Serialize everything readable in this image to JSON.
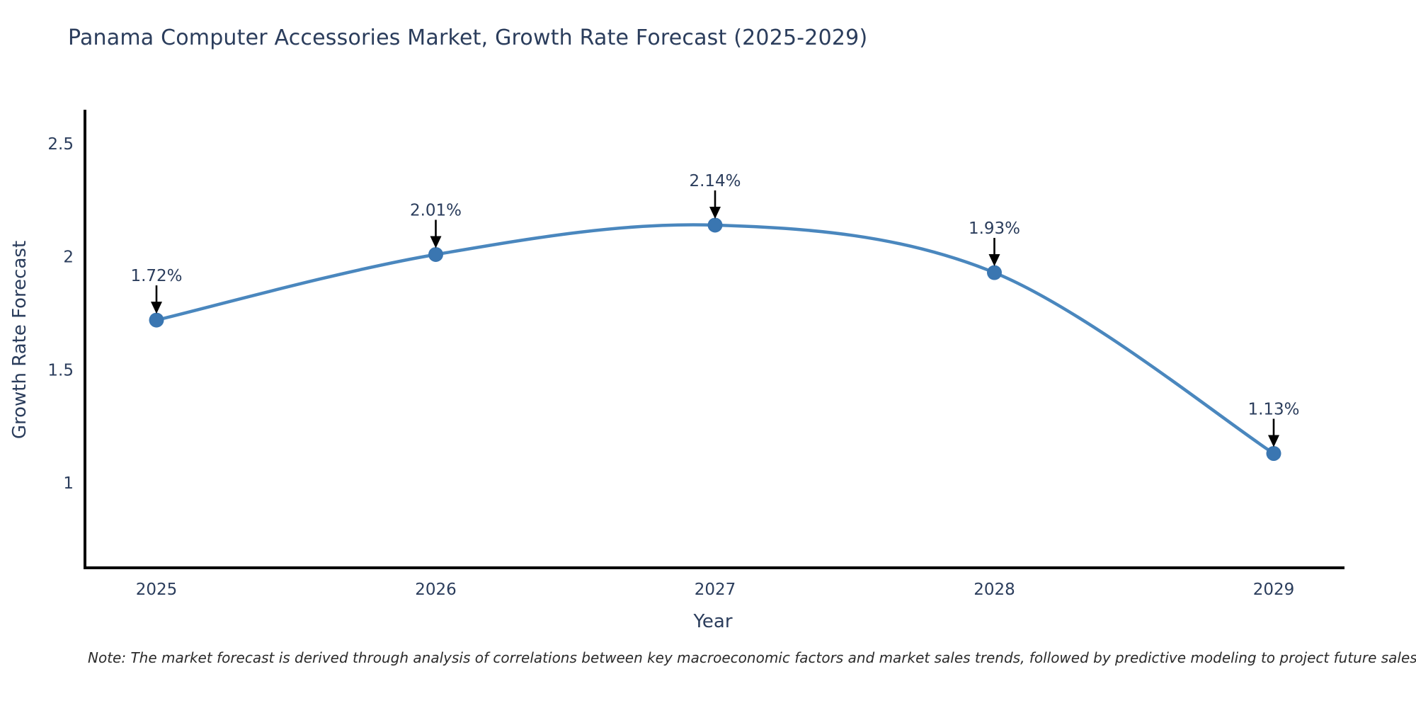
{
  "page": {
    "background": "#ffffff"
  },
  "header": {
    "title": "Panama Computer Accessories Market, Growth Rate Forecast (2025-2029)"
  },
  "footer": {
    "note": "Note: The market forecast is derived through analysis of correlations between key macroeconomic factors and market sales trends, followed by predictive modeling to project future sales"
  },
  "colors": {
    "line": "#4a87be",
    "marker": "#3a76b1",
    "axis": "#000000",
    "text": "#2b3d5c",
    "arrow": "#000000",
    "note_text": "#2b2b2b"
  },
  "chart_data": {
    "type": "line",
    "title": "Panama Computer Accessories Market, Growth Rate Forecast (2025-2029)",
    "xlabel": "Year",
    "ylabel": "Growth Rate Forecast",
    "x": [
      "2025",
      "2026",
      "2027",
      "2028",
      "2029"
    ],
    "series": [
      {
        "name": "Growth Rate Forecast",
        "values": [
          1.72,
          2.01,
          2.14,
          1.93,
          1.13
        ],
        "point_labels": [
          "1.72%",
          "2.01%",
          "2.14%",
          "1.93%",
          "1.13%"
        ]
      }
    ],
    "yticks": [
      1,
      1.5,
      2,
      2.5
    ],
    "ytick_labels": [
      "1",
      "1.5",
      "2",
      "2.5"
    ],
    "ylim": [
      0.63,
      2.65
    ],
    "line_shape": "spline",
    "grid": false,
    "legend_visible": false,
    "annotations_arrow": "down-black"
  }
}
